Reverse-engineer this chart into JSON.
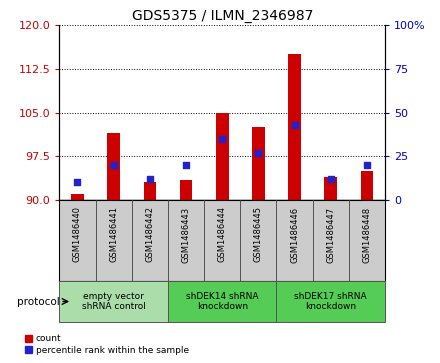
{
  "title": "GDS5375 / ILMN_2346987",
  "samples": [
    "GSM1486440",
    "GSM1486441",
    "GSM1486442",
    "GSM1486443",
    "GSM1486444",
    "GSM1486445",
    "GSM1486446",
    "GSM1486447",
    "GSM1486448"
  ],
  "count_values": [
    91.0,
    101.5,
    93.0,
    93.5,
    105.0,
    102.5,
    115.0,
    94.0,
    95.0
  ],
  "percentile_values": [
    10,
    20,
    12,
    20,
    35,
    27,
    43,
    12,
    20
  ],
  "ylim_left": [
    90,
    120
  ],
  "ylim_right": [
    0,
    100
  ],
  "yticks_left": [
    90,
    97.5,
    105,
    112.5,
    120
  ],
  "yticks_right": [
    0,
    25,
    50,
    75,
    100
  ],
  "bar_color": "#cc0000",
  "dot_color": "#2222cc",
  "bar_bottom": 90,
  "bar_width": 0.35,
  "groups": [
    {
      "label": "empty vector\nshRNA control",
      "indices": [
        0,
        1,
        2
      ],
      "color": "#aaddaa"
    },
    {
      "label": "shDEK14 shRNA\nknockdown",
      "indices": [
        3,
        4,
        5
      ],
      "color": "#55cc55"
    },
    {
      "label": "shDEK17 shRNA\nknockdown",
      "indices": [
        6,
        7,
        8
      ],
      "color": "#55cc55"
    }
  ],
  "protocol_label": "protocol",
  "legend_count_label": "count",
  "legend_pct_label": "percentile rank within the sample",
  "background_color": "#ffffff",
  "plot_bg_color": "#ffffff",
  "tick_bg_color": "#cccccc",
  "grid_color": "#000000"
}
